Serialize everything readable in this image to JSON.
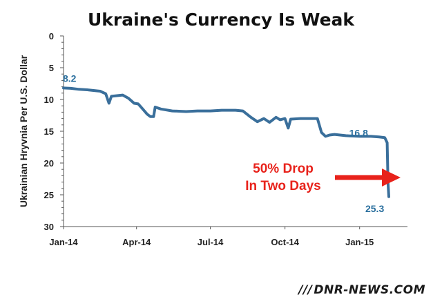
{
  "chart_data": {
    "type": "line",
    "title": "Ukraine's Currency Is Weak",
    "xlabel": "",
    "ylabel": "Ukrainian Hryvnia Per U.S. Dollar",
    "ylim": [
      0,
      30
    ],
    "y_inverted": true,
    "yticks": [
      "0",
      "5",
      "10",
      "15",
      "20",
      "25",
      "30"
    ],
    "xticks": [
      "Jan-14",
      "Apr-14",
      "Jul-14",
      "Oct-14",
      "Jan-15"
    ],
    "grid": false,
    "series": [
      {
        "color": "#3a6f9b",
        "points": [
          [
            "2014-01-01",
            8.2
          ],
          [
            "2014-01-10",
            8.25
          ],
          [
            "2014-01-20",
            8.4
          ],
          [
            "2014-02-01",
            8.5
          ],
          [
            "2014-02-08",
            8.6
          ],
          [
            "2014-02-15",
            8.7
          ],
          [
            "2014-02-22",
            9.1
          ],
          [
            "2014-02-26",
            10.6
          ],
          [
            "2014-03-01",
            9.5
          ],
          [
            "2014-03-08",
            9.4
          ],
          [
            "2014-03-15",
            9.3
          ],
          [
            "2014-03-22",
            9.8
          ],
          [
            "2014-03-29",
            10.6
          ],
          [
            "2014-04-03",
            10.7
          ],
          [
            "2014-04-08",
            11.4
          ],
          [
            "2014-04-14",
            12.3
          ],
          [
            "2014-04-18",
            12.7
          ],
          [
            "2014-04-22",
            12.7
          ],
          [
            "2014-04-24",
            11.2
          ],
          [
            "2014-05-01",
            11.5
          ],
          [
            "2014-05-15",
            11.8
          ],
          [
            "2014-06-01",
            11.9
          ],
          [
            "2014-06-15",
            11.8
          ],
          [
            "2014-07-01",
            11.8
          ],
          [
            "2014-07-15",
            11.7
          ],
          [
            "2014-08-01",
            11.7
          ],
          [
            "2014-08-10",
            11.8
          ],
          [
            "2014-08-20",
            12.8
          ],
          [
            "2014-08-28",
            13.5
          ],
          [
            "2014-09-05",
            13.0
          ],
          [
            "2014-09-12",
            13.6
          ],
          [
            "2014-09-20",
            12.8
          ],
          [
            "2014-09-25",
            13.2
          ],
          [
            "2014-10-01",
            13.0
          ],
          [
            "2014-10-05",
            14.5
          ],
          [
            "2014-10-08",
            13.1
          ],
          [
            "2014-10-20",
            13.0
          ],
          [
            "2014-11-01",
            13.0
          ],
          [
            "2014-11-10",
            13.0
          ],
          [
            "2014-11-15",
            15.2
          ],
          [
            "2014-11-20",
            15.8
          ],
          [
            "2014-11-25",
            15.6
          ],
          [
            "2014-12-01",
            15.5
          ],
          [
            "2014-12-15",
            15.7
          ],
          [
            "2015-01-01",
            15.8
          ],
          [
            "2015-01-15",
            15.8
          ],
          [
            "2015-01-25",
            15.9
          ],
          [
            "2015-02-01",
            16.0
          ],
          [
            "2015-02-04",
            16.8
          ],
          [
            "2015-02-05",
            23.0
          ],
          [
            "2015-02-06",
            25.3
          ]
        ]
      }
    ],
    "annotations": [
      {
        "text": "8.2",
        "date": "2014-01-01",
        "value": 8.2
      },
      {
        "text": "16.8",
        "date": "2015-02-04",
        "value": 16.8
      },
      {
        "text": "25.3",
        "date": "2015-02-06",
        "value": 25.3
      }
    ],
    "callout": {
      "lines": [
        "50% Drop",
        "In Two Days"
      ],
      "color": "#e8221b"
    }
  },
  "watermark": {
    "slashes": "///",
    "text": "DNR-NEWS.COM"
  }
}
